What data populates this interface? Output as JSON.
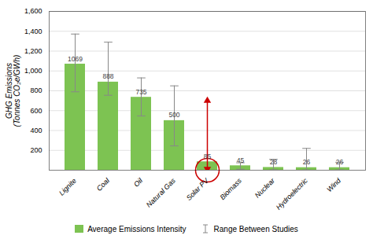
{
  "chart_data": {
    "type": "bar",
    "categories": [
      "Lignite",
      "Coal",
      "Oil",
      "Natural Gas",
      "Solar PV",
      "Biomass",
      "Nuclear",
      "Hydroelectric",
      "Wind"
    ],
    "series": [
      {
        "name": "Average Emissions Intensity",
        "color": "#7DC352",
        "values": [
          1069,
          888,
          735,
          500,
          85,
          45,
          28,
          26,
          26
        ],
        "error_name": "Range Between Studies",
        "error_color": "#888888",
        "error_low": [
          790,
          755,
          547,
          245,
          13,
          10,
          4,
          3,
          4
        ],
        "error_high": [
          1372,
          1290,
          930,
          850,
          700,
          75,
          110,
          220,
          80
        ]
      }
    ],
    "highlight": {
      "category": "Solar PV",
      "color": "#CC0000"
    },
    "ylabel": "GHG Emissions\n(Tonnes CO₂e/GWh)",
    "ylim": [
      0,
      1600
    ],
    "yticks": [
      200,
      400,
      600,
      800,
      1000,
      1200,
      1400,
      1600
    ],
    "grid": true,
    "data_labels": true,
    "legend": "bottom"
  }
}
